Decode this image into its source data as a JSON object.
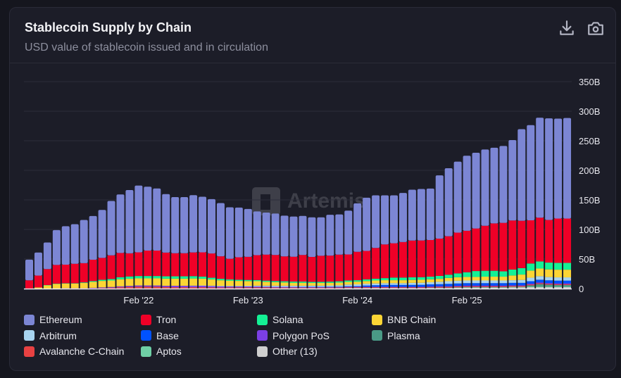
{
  "header": {
    "title": "Stablecoin Supply by Chain",
    "subtitle": "USD value of stablecoin issued and in circulation",
    "download_icon": "download-icon",
    "camera_icon": "camera-icon"
  },
  "watermark": "Artemis",
  "chart_data": {
    "type": "bar",
    "stacked": true,
    "title": "Stablecoin Supply by Chain",
    "subtitle": "USD value of stablecoin issued and in circulation",
    "xlabel": "",
    "ylabel": "",
    "ylim": [
      0,
      350
    ],
    "yticks": [
      0,
      50,
      100,
      150,
      200,
      250,
      300,
      350
    ],
    "ytick_labels": [
      "0",
      "50B",
      "100B",
      "150B",
      "200B",
      "250B",
      "300B",
      "350B"
    ],
    "y_axis_side": "right",
    "grid": true,
    "legend_position": "bottom",
    "x_tick_labels": [
      {
        "index": 12,
        "label": "Feb '22"
      },
      {
        "index": 24,
        "label": "Feb '23"
      },
      {
        "index": 36,
        "label": "Feb '24"
      },
      {
        "index": 48,
        "label": "Feb '25"
      }
    ],
    "categories": [
      "Feb '21",
      "Mar '21",
      "Apr '21",
      "May '21",
      "Jun '21",
      "Jul '21",
      "Aug '21",
      "Sep '21",
      "Oct '21",
      "Nov '21",
      "Dec '21",
      "Jan '22",
      "Feb '22",
      "Mar '22",
      "Apr '22",
      "May '22",
      "Jun '22",
      "Jul '22",
      "Aug '22",
      "Sep '22",
      "Oct '22",
      "Nov '22",
      "Dec '22",
      "Jan '23",
      "Feb '23",
      "Mar '23",
      "Apr '23",
      "May '23",
      "Jun '23",
      "Jul '23",
      "Aug '23",
      "Sep '23",
      "Oct '23",
      "Nov '23",
      "Dec '23",
      "Jan '24",
      "Feb '24",
      "Mar '24",
      "Apr '24",
      "May '24",
      "Jun '24",
      "Jul '24",
      "Aug '24",
      "Sep '24",
      "Oct '24",
      "Nov '24",
      "Dec '24",
      "Jan '25",
      "Feb '25",
      "Mar '25",
      "Apr '25",
      "May '25",
      "Jun '25",
      "Jul '25",
      "Aug '25",
      "Sep '25",
      "Oct '25",
      "Nov '25",
      "Dec '25",
      "Jan '26"
    ],
    "series": [
      {
        "name": "Other (13)",
        "color": "#cfcfcf",
        "values": [
          0,
          0,
          0,
          0,
          0,
          0,
          0,
          0,
          0,
          0,
          0.3,
          0.3,
          0.3,
          0.3,
          0.3,
          0.3,
          0.3,
          0.3,
          0.3,
          0.3,
          0.3,
          0.3,
          0.5,
          0.5,
          0.5,
          0.5,
          0.5,
          0.5,
          0.5,
          0.5,
          0.5,
          0.5,
          0.5,
          0.5,
          0.5,
          1,
          1,
          1,
          1,
          1,
          1,
          1,
          1,
          1,
          1,
          1,
          1,
          1.5,
          1.5,
          1.5,
          1.5,
          1.5,
          1.5,
          2,
          2,
          2.5,
          2.5,
          2.5,
          2.5,
          2.5
        ]
      },
      {
        "name": "Aptos",
        "color": "#6fd0a6",
        "values": [
          0,
          0,
          0,
          0,
          0,
          0,
          0,
          0,
          0,
          0,
          0,
          0,
          0,
          0,
          0,
          0,
          0,
          0,
          0,
          0,
          0,
          0,
          0,
          0,
          0,
          0,
          0,
          0,
          0,
          0,
          0,
          0,
          0,
          0,
          0,
          0,
          0,
          0,
          0,
          0,
          0,
          0,
          0,
          0,
          0.5,
          0.5,
          0.5,
          0.7,
          1,
          1,
          1,
          1,
          1,
          1,
          1,
          1,
          1,
          1,
          1,
          1
        ]
      },
      {
        "name": "Plasma",
        "color": "#4a9a86",
        "values": [
          0,
          0,
          0,
          0,
          0,
          0,
          0,
          0,
          0,
          0,
          0,
          0,
          0,
          0,
          0,
          0,
          0,
          0,
          0,
          0,
          0,
          0,
          0,
          0,
          0,
          0,
          0,
          0,
          0,
          0,
          0,
          0,
          0,
          0,
          0,
          0,
          0,
          0,
          0,
          0,
          0,
          0,
          0,
          0,
          0,
          0,
          0,
          0,
          0,
          0,
          0,
          0,
          0,
          0,
          0,
          2,
          4,
          3,
          2.5,
          2.5
        ]
      },
      {
        "name": "Avalanche C-Chain",
        "color": "#e84142",
        "values": [
          0,
          0,
          0,
          0,
          0,
          0,
          0,
          0.5,
          1,
          1.5,
          2,
          2.5,
          3,
          3,
          3,
          2.5,
          2,
          2,
          2,
          2,
          1.8,
          1.5,
          1.5,
          1.5,
          1.5,
          1.5,
          1.5,
          1.2,
          1.2,
          1.2,
          1.2,
          1.2,
          1.2,
          1.2,
          1.2,
          1.2,
          1.2,
          1.2,
          1.2,
          1.2,
          1.2,
          1.2,
          1.2,
          1.2,
          1.2,
          1.5,
          1.5,
          1.5,
          1.5,
          1.5,
          1.5,
          1.5,
          1.5,
          1.5,
          1.5,
          1.5,
          1.5,
          1.5,
          1.5,
          1.5
        ]
      },
      {
        "name": "Polygon PoS",
        "color": "#7b3fe4",
        "values": [
          0,
          0,
          0,
          0,
          0.5,
          0.5,
          0.5,
          0.8,
          1,
          1.2,
          1.5,
          1.8,
          2,
          2,
          2,
          2,
          2.5,
          2.5,
          2.5,
          2.5,
          2,
          1.8,
          1.5,
          1.5,
          1.5,
          1.5,
          1.2,
          1.2,
          1.2,
          1.2,
          1,
          1,
          1,
          1,
          1,
          1,
          1,
          1,
          1,
          1,
          1,
          1,
          1,
          1,
          1,
          1,
          1,
          1,
          1.2,
          1.2,
          1.2,
          1.2,
          1.2,
          1.2,
          1.2,
          1.5,
          1.5,
          1.5,
          1.5,
          1.5
        ]
      },
      {
        "name": "Base",
        "color": "#0052ff",
        "values": [
          0,
          0,
          0,
          0,
          0,
          0,
          0,
          0,
          0,
          0,
          0,
          0,
          0,
          0,
          0,
          0,
          0,
          0,
          0,
          0,
          0,
          0,
          0,
          0,
          0,
          0,
          0,
          0,
          0,
          0,
          0.2,
          0.3,
          0.3,
          0.4,
          0.5,
          0.8,
          1,
          2,
          2.5,
          3,
          3,
          3,
          3,
          3.2,
          3.5,
          3.5,
          4,
          4,
          4,
          4,
          4,
          4,
          4,
          4,
          4,
          4,
          4.5,
          4.5,
          4.5,
          4.5
        ]
      },
      {
        "name": "Arbitrum",
        "color": "#a8d4f0",
        "values": [
          0,
          0,
          0,
          0,
          0,
          0,
          0,
          0,
          0,
          0,
          0,
          0,
          0,
          0,
          0,
          0,
          0,
          0,
          0.3,
          0.5,
          0.8,
          1,
          1,
          1,
          1.2,
          1.5,
          1.8,
          2,
          2,
          2,
          2,
          2,
          2,
          2.2,
          2.5,
          2.8,
          3,
          3,
          3,
          3,
          3,
          3,
          3.5,
          3.5,
          3.5,
          4,
          4.5,
          4.5,
          4.5,
          4.5,
          4.5,
          4.5,
          4.5,
          4.5,
          5,
          6,
          6,
          5.5,
          5.5,
          5.5
        ]
      },
      {
        "name": "BNB Chain",
        "color": "#fcd535",
        "values": [
          0,
          2,
          5.5,
          8,
          8,
          8,
          9,
          10,
          11,
          11,
          12,
          12,
          12,
          12,
          12,
          12,
          12,
          12,
          12,
          11.5,
          10.5,
          9.5,
          9,
          8.5,
          8,
          7.5,
          6.5,
          6,
          5.5,
          5,
          5,
          4.5,
          4.5,
          4.5,
          4.5,
          4.5,
          4.5,
          4.5,
          5,
          5,
          5,
          5,
          5,
          5,
          5,
          5,
          5.5,
          6,
          6,
          6,
          6.5,
          6.5,
          6.5,
          8,
          9,
          12,
          13,
          13,
          13,
          13
        ]
      },
      {
        "name": "Solana",
        "color": "#14f195",
        "values": [
          0,
          0,
          0.5,
          0.5,
          0.5,
          0.5,
          1,
          1.5,
          2,
          2.5,
          3.5,
          4,
          4,
          4,
          4,
          4,
          4,
          4,
          4,
          3.5,
          3,
          2.5,
          2,
          2,
          2,
          2,
          2,
          2,
          2,
          2,
          2,
          2,
          2,
          2,
          2.2,
          2.5,
          2.5,
          3,
          3,
          3.5,
          4.5,
          4.5,
          4.5,
          4.5,
          4.5,
          5,
          5.5,
          6.5,
          8,
          10,
          10,
          10,
          9,
          10,
          11,
          12,
          12,
          11.5,
          11.5,
          11.5
        ]
      },
      {
        "name": "Tron",
        "color": "#ef0027",
        "values": [
          14,
          20,
          27,
          31.5,
          31.5,
          33,
          32.5,
          36,
          37,
          40,
          41,
          39,
          40,
          43,
          43,
          40,
          39,
          39,
          40,
          41,
          41,
          38,
          35,
          38,
          39,
          42,
          44,
          44,
          42,
          42,
          45,
          42,
          44,
          44,
          45,
          44,
          48,
          48,
          52,
          57,
          58,
          60,
          62,
          62,
          62,
          63,
          65,
          69,
          70,
          72,
          76,
          80,
          82,
          83,
          80,
          73,
          74,
          72,
          75,
          75
        ]
      },
      {
        "name": "Ethereum",
        "color": "#7c86d4",
        "values": [
          35,
          39,
          45,
          59,
          65,
          67,
          73,
          74,
          81,
          92,
          99,
          107,
          113,
          108,
          105,
          99,
          95,
          95,
          97,
          94,
          92,
          90,
          87,
          84,
          81,
          74,
          71,
          70,
          69,
          68,
          66,
          67,
          65,
          69,
          68,
          74,
          82,
          90,
          89,
          83,
          81,
          83,
          86,
          87,
          87,
          107,
          115,
          120,
          127,
          128,
          129,
          128,
          130,
          136,
          155,
          161,
          169,
          172,
          169,
          170
        ]
      }
    ]
  },
  "legend": [
    {
      "name": "Ethereum",
      "color": "#7c86d4"
    },
    {
      "name": "Tron",
      "color": "#ef0027"
    },
    {
      "name": "Solana",
      "color": "#14f195"
    },
    {
      "name": "BNB Chain",
      "color": "#fcd535"
    },
    {
      "name": "Arbitrum",
      "color": "#a8d4f0"
    },
    {
      "name": "Base",
      "color": "#0052ff"
    },
    {
      "name": "Polygon PoS",
      "color": "#7b3fe4"
    },
    {
      "name": "Plasma",
      "color": "#4a9a86"
    },
    {
      "name": "Avalanche C-Chain",
      "color": "#e84142"
    },
    {
      "name": "Aptos",
      "color": "#6fd0a6"
    },
    {
      "name": "Other (13)",
      "color": "#cfcfcf"
    }
  ]
}
